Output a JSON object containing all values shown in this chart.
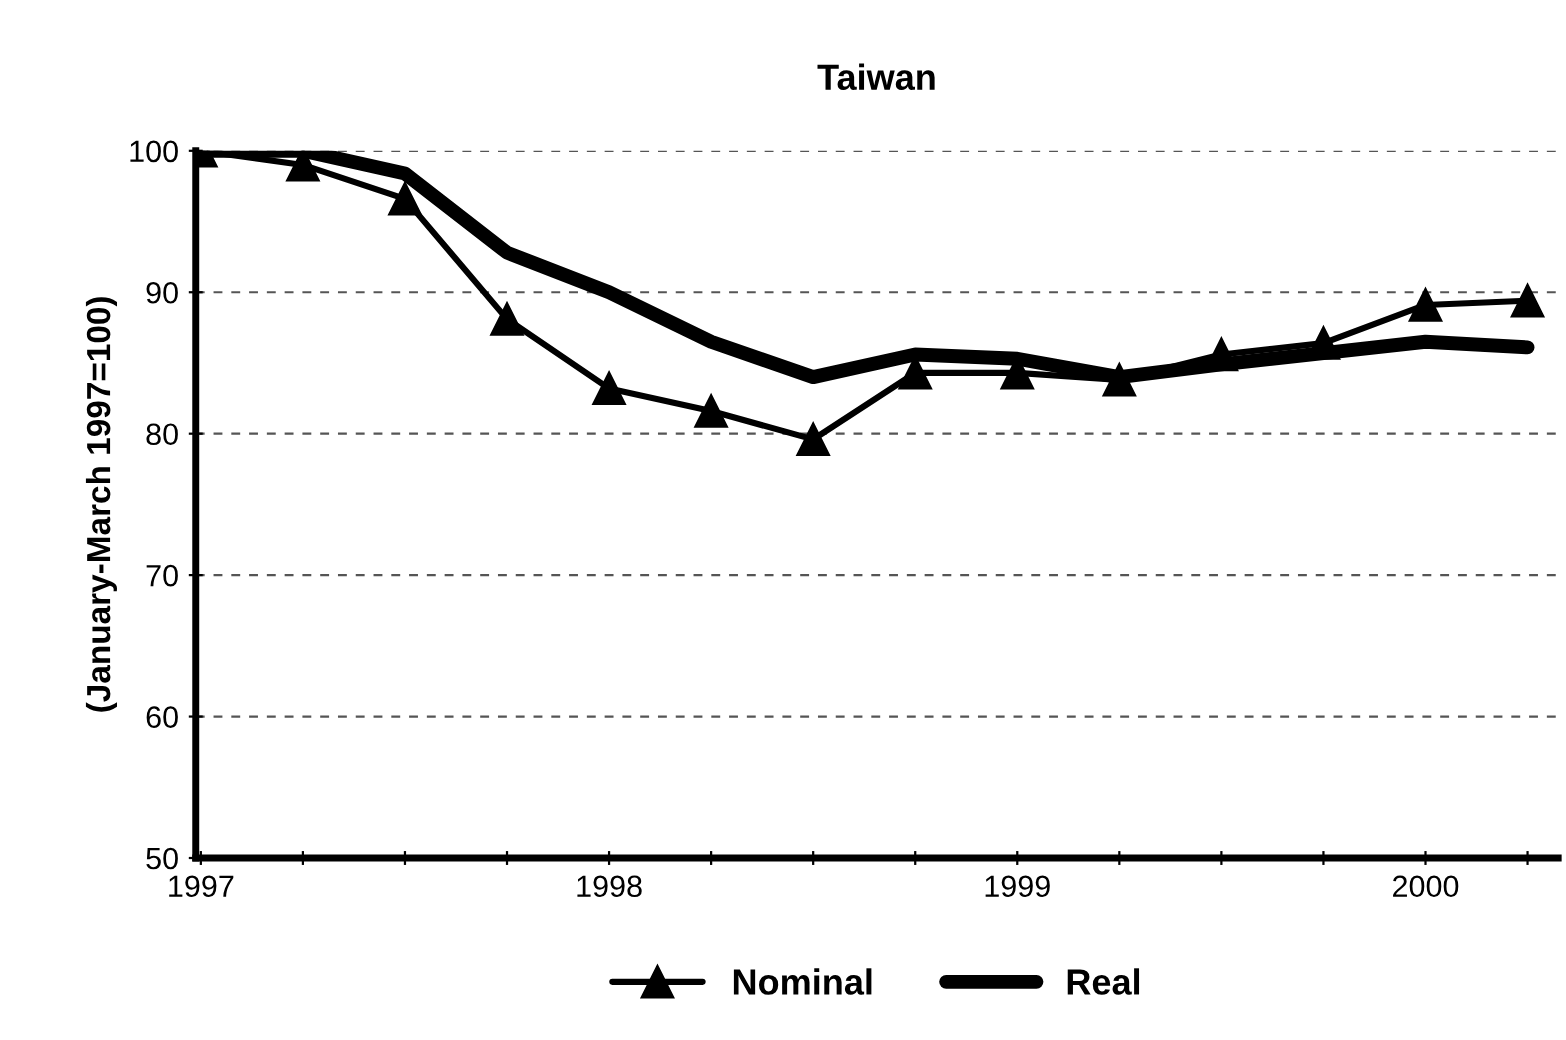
{
  "chart_data": {
    "type": "line",
    "title": "Taiwan",
    "ylabel": "(January-March 1997=100)",
    "categories": [
      "1997",
      null,
      null,
      null,
      "1998",
      null,
      null,
      null,
      "1999",
      null,
      null,
      null,
      "2000",
      null
    ],
    "series": [
      {
        "name": "Nominal",
        "color": "#000000",
        "marker": "triangle",
        "values": [
          100,
          99,
          96.6,
          88.1,
          83.2,
          81.6,
          79.6,
          84.3,
          84.3,
          83.8,
          85.6,
          86.4,
          89.1,
          89.4
        ]
      },
      {
        "name": "Real",
        "color": "#000000",
        "marker": "none",
        "values": [
          100,
          100,
          98.4,
          92.8,
          90,
          86.5,
          84,
          85.6,
          85.3,
          84,
          84.9,
          85.7,
          86.5,
          86.1
        ]
      }
    ],
    "ylim": [
      50,
      100
    ],
    "yticks": [
      50,
      60,
      70,
      80,
      90,
      100
    ],
    "grid": "y",
    "legend": "bottom",
    "line_style": "solid"
  }
}
